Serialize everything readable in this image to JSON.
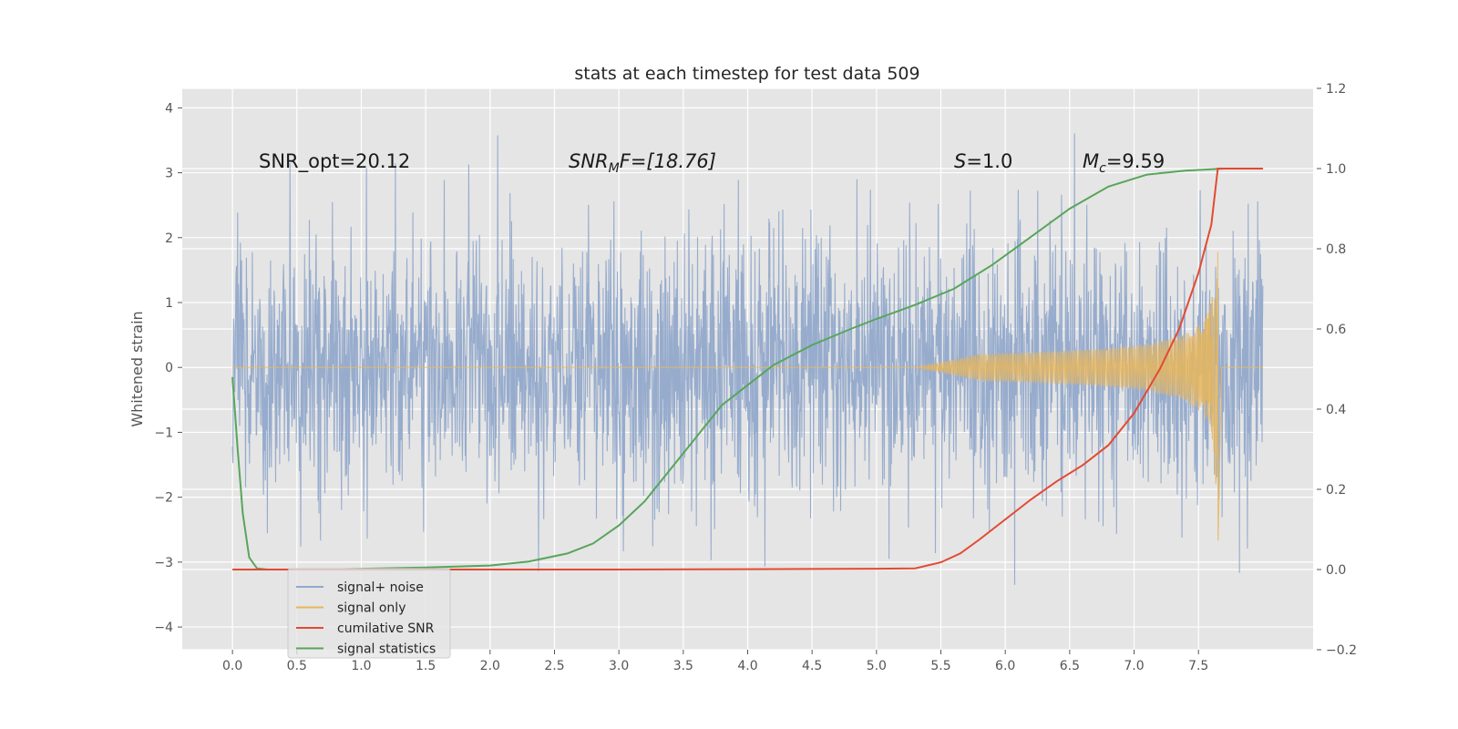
{
  "chart_data": {
    "type": "line",
    "title": "stats at each timestep for test data 509",
    "ylabel": "Whitened strain",
    "xlabel": "",
    "xlim": [
      -0.39,
      8.39
    ],
    "ylim": [
      -4.35,
      4.3
    ],
    "y2lim": [
      -0.2,
      1.2
    ],
    "grid": true,
    "xticks": [
      "0.0",
      "0.5",
      "1.0",
      "1.5",
      "2.0",
      "2.5",
      "3.0",
      "3.5",
      "4.0",
      "4.5",
      "5.0",
      "5.5",
      "6.0",
      "6.5",
      "7.0",
      "7.5"
    ],
    "yticks": [
      "4",
      "3",
      "2",
      "1",
      "0",
      "−1",
      "−2",
      "−3",
      "−4"
    ],
    "y2ticks": [
      "1.2",
      "1.0",
      "0.8",
      "0.6",
      "0.4",
      "0.2",
      "0.0",
      "−0.2"
    ],
    "annotations": {
      "snr_opt": "SNR_opt=20.12",
      "snr_mf_main": "SNR",
      "snr_mf_sub": "M",
      "snr_mf_rest": "F=[18.76]",
      "s_var": "S",
      "s_rest": "=1.0",
      "mc_var": "M",
      "mc_sub": "c",
      "mc_rest": "=9.59"
    },
    "legend_position": "lower-left",
    "series": [
      {
        "name": "signal+ noise",
        "axis": "left",
        "color": "#92a9cb",
        "description": "noisy strain, roughly Gaussian with std about 1.0, from t=0 to t=8.0",
        "t_range": [
          0,
          8.0
        ],
        "std": 1.0,
        "envelope_max": [
          3.9,
          3.6
        ],
        "envelope_min": [
          -3.9,
          -3.8
        ]
      },
      {
        "name": "signal only",
        "axis": "left",
        "color": "#e8b65c",
        "description": "chirp signal, flat zero until about t=5.3, growing to amplitude about 3 at merger t=7.65",
        "merger_time": 7.65,
        "start_time": 5.3,
        "peak_amplitude": 3.0
      },
      {
        "name": "cumilative SNR",
        "axis": "right",
        "color": "#e24a33",
        "x": [
          0,
          1,
          2,
          3,
          4,
          5,
          5.3,
          5.5,
          5.65,
          5.8,
          6.0,
          6.2,
          6.4,
          6.6,
          6.8,
          7.0,
          7.2,
          7.35,
          7.5,
          7.6,
          7.65,
          8.0
        ],
        "y": [
          0.0,
          0.0,
          0.0,
          0.0,
          0.001,
          0.002,
          0.003,
          0.018,
          0.04,
          0.075,
          0.125,
          0.175,
          0.22,
          0.26,
          0.31,
          0.39,
          0.5,
          0.6,
          0.74,
          0.86,
          1.0,
          1.0
        ]
      },
      {
        "name": "signal statistics",
        "axis": "right",
        "color": "#57a55b",
        "x": [
          0,
          0.04,
          0.08,
          0.13,
          0.19,
          0.27,
          0.4,
          0.6,
          1.0,
          1.5,
          2.0,
          2.3,
          2.6,
          2.8,
          3.0,
          3.2,
          3.4,
          3.6,
          3.8,
          4.0,
          4.2,
          4.5,
          4.8,
          5.0,
          5.3,
          5.6,
          5.9,
          6.2,
          6.5,
          6.8,
          7.1,
          7.4,
          7.7,
          8.0
        ],
        "y": [
          0.48,
          0.3,
          0.14,
          0.03,
          0.003,
          0.0,
          0.0,
          0.0,
          0.002,
          0.005,
          0.01,
          0.02,
          0.04,
          0.065,
          0.11,
          0.17,
          0.25,
          0.33,
          0.41,
          0.46,
          0.51,
          0.56,
          0.6,
          0.625,
          0.66,
          0.7,
          0.76,
          0.83,
          0.9,
          0.955,
          0.985,
          0.995,
          1.0,
          1.0
        ]
      }
    ]
  }
}
